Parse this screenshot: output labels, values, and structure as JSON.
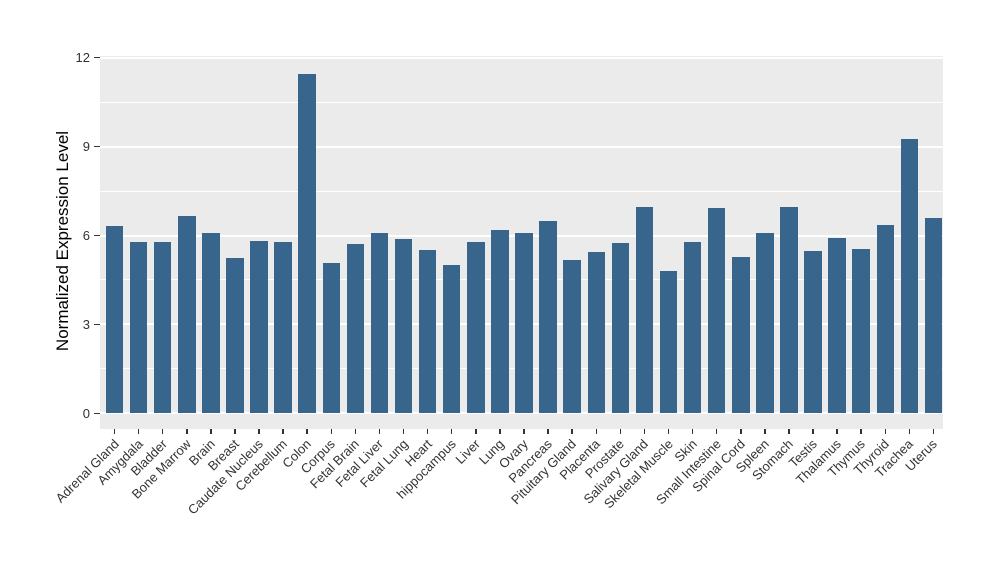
{
  "chart_data": {
    "type": "bar",
    "title": "",
    "xlabel": "",
    "ylabel": "Normalized Expression Level",
    "ylim": [
      0,
      12
    ],
    "yticks": [
      0,
      3,
      6,
      9,
      12
    ],
    "ytick_labels": [
      "0",
      "3",
      "6",
      "9",
      "12"
    ],
    "yminor": [
      1.5,
      4.5,
      7.5,
      10.5
    ],
    "grid": "on",
    "legend_position": "none",
    "x_label_rotation_deg": 45,
    "categories": [
      "Adrenal Gland",
      "Amygdala",
      "Bladder",
      "Bone Marrow",
      "Brain",
      "Breast",
      "Caudate Nucleus",
      "Cerebellum",
      "Colon",
      "Corpus",
      "Fetal Brain",
      "Fetal Liver",
      "Fetal Lung",
      "Heart",
      "hippocampus",
      "Liver",
      "Lung",
      "Ovary",
      "Pancreas",
      "Pituitary Gland",
      "Placenta",
      "Prostate",
      "Salivary Gland",
      "Skeletal Muscle",
      "Skin",
      "Small Intestine",
      "Spinal Cord",
      "Spleen",
      "Stomach",
      "Testis",
      "Thalamus",
      "Thymus",
      "Thyroid",
      "Trachea",
      "Uterus"
    ],
    "values": [
      6.31,
      5.79,
      5.79,
      6.65,
      6.08,
      5.23,
      5.83,
      5.79,
      11.46,
      5.07,
      5.73,
      6.1,
      5.9,
      5.51,
      5.01,
      5.79,
      6.19,
      6.1,
      6.5,
      5.18,
      5.45,
      5.76,
      6.97,
      4.8,
      5.78,
      6.92,
      5.29,
      6.09,
      6.98,
      5.48,
      5.91,
      5.53,
      6.36,
      9.27,
      6.59
    ],
    "colors": {
      "bar_fill": "#37658C",
      "panel_background": "#EBEBEB",
      "gridline_major": "#FFFFFF",
      "gridline_minor": "#FFFFFF",
      "tick_mark": "#333333",
      "tick_text": "#333333",
      "axis_title_text": "#000000",
      "page_background": "#FFFFFF"
    }
  }
}
